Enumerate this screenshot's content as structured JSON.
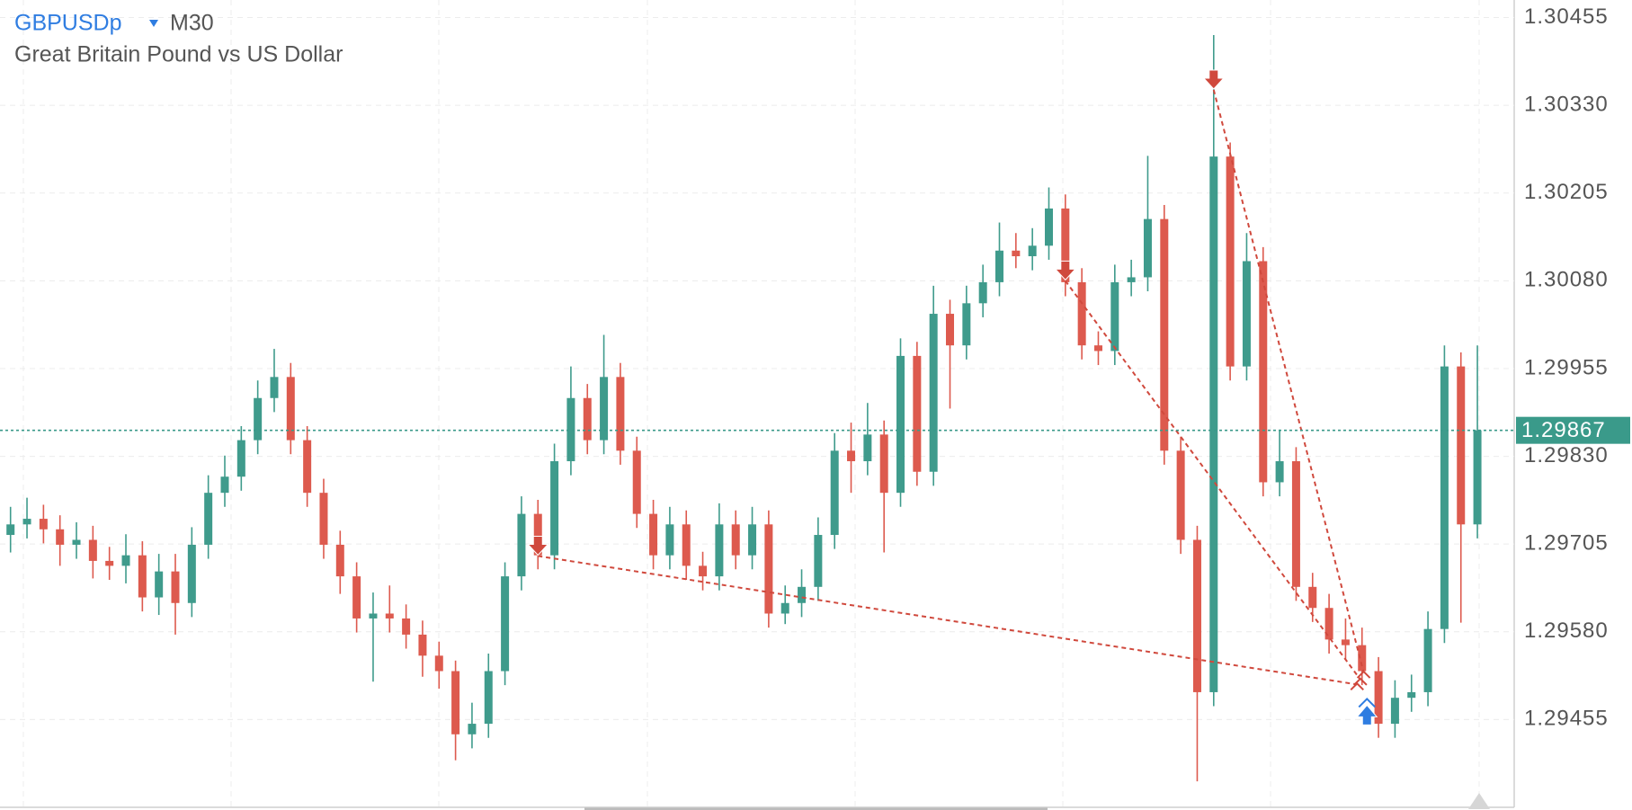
{
  "chart_data": {
    "type": "candlestick",
    "title": "GBPUSDp",
    "timeframe": "M30",
    "subtitle": "Great Britain Pound vs US Dollar",
    "up_color": "#3f9b8c",
    "down_color": "#dd5a4e",
    "grid": true,
    "ylim": [
      1.2933,
      1.3048
    ],
    "yticks": [
      1.30455,
      {
        "value": 1.3033,
        "label": "1.30330"
      },
      1.30205,
      {
        "value": 1.3008,
        "label": "1.30080"
      },
      1.29955,
      {
        "value": 1.2983,
        "label": "1.29830"
      },
      1.29705,
      {
        "value": 1.2958,
        "label": "1.29580"
      },
      1.29455
    ],
    "last_price": 1.29867,
    "last_price_color": "#3a9a8a",
    "open": [
      1.29718,
      1.29733,
      1.29741,
      1.29726,
      1.29704,
      1.29711,
      1.29681,
      1.29674,
      1.29689,
      1.29629,
      1.29666,
      1.29621,
      1.29704,
      1.29778,
      1.29801,
      1.29853,
      1.29913,
      1.29943,
      1.29853,
      1.29778,
      1.29704,
      1.29659,
      1.29599,
      1.29606,
      1.29599,
      1.29576,
      1.29546,
      1.29524,
      1.29434,
      1.29449,
      1.29524,
      1.29659,
      1.29748,
      1.29689,
      1.29823,
      1.29913,
      1.29853,
      1.29943,
      1.29838,
      1.29748,
      1.29689,
      1.29733,
      1.29674,
      1.29659,
      1.29733,
      1.29689,
      1.29733,
      1.29606,
      1.29621,
      1.29644,
      1.29718,
      1.29838,
      1.29823,
      1.29861,
      1.29778,
      1.29973,
      1.29808,
      1.30033,
      1.29988,
      1.30048,
      1.30078,
      1.30123,
      1.30115,
      1.3013,
      1.30183,
      1.30078,
      1.29988,
      1.2998,
      1.30078,
      1.30085,
      1.30168,
      1.29838,
      1.29711,
      1.29494,
      1.30257,
      1.29958,
      1.30108,
      1.29793,
      1.29823,
      1.29644,
      1.29614,
      1.29569,
      1.29561,
      1.29524,
      1.29449,
      1.29486,
      1.29494,
      1.29584,
      1.29958,
      1.29733
    ],
    "high": [
      1.29758,
      1.29771,
      1.29761,
      1.29746,
      1.29736,
      1.29731,
      1.29701,
      1.29719,
      1.29709,
      1.29691,
      1.29691,
      1.29729,
      1.29803,
      1.29831,
      1.29873,
      1.29938,
      1.29983,
      1.29963,
      1.29873,
      1.29798,
      1.29724,
      1.29679,
      1.29636,
      1.29646,
      1.29619,
      1.29596,
      1.29566,
      1.29539,
      1.29479,
      1.29549,
      1.29679,
      1.29773,
      1.29768,
      1.29848,
      1.29958,
      1.29933,
      1.30003,
      1.29963,
      1.29858,
      1.29768,
      1.29758,
      1.29753,
      1.29694,
      1.29763,
      1.29753,
      1.29758,
      1.29753,
      1.29646,
      1.29669,
      1.29743,
      1.29863,
      1.29878,
      1.29906,
      1.29881,
      1.29998,
      1.29993,
      1.30073,
      1.30053,
      1.30073,
      1.30103,
      1.30163,
      1.30148,
      1.30155,
      1.30213,
      1.30203,
      1.30098,
      1.30008,
      1.30103,
      1.3011,
      1.30258,
      1.30188,
      1.29858,
      1.29731,
      1.3043,
      1.30277,
      1.30148,
      1.30128,
      1.29868,
      1.29843,
      1.29664,
      1.29634,
      1.29599,
      1.29586,
      1.29544,
      1.29511,
      1.29519,
      1.29609,
      1.29988,
      1.29978,
      1.29988
    ],
    "low": [
      1.29693,
      1.29713,
      1.29706,
      1.29674,
      1.29684,
      1.29656,
      1.29654,
      1.29649,
      1.29609,
      1.29604,
      1.29576,
      1.29601,
      1.29684,
      1.29758,
      1.29781,
      1.29833,
      1.29893,
      1.29833,
      1.29758,
      1.29684,
      1.29634,
      1.29579,
      1.29509,
      1.29579,
      1.29556,
      1.29516,
      1.29499,
      1.29397,
      1.29414,
      1.29429,
      1.29504,
      1.29639,
      1.29669,
      1.29669,
      1.29803,
      1.29833,
      1.29833,
      1.29818,
      1.29728,
      1.29669,
      1.29669,
      1.29654,
      1.29639,
      1.29639,
      1.29669,
      1.29669,
      1.29586,
      1.29591,
      1.29601,
      1.29624,
      1.29698,
      1.29778,
      1.29803,
      1.29693,
      1.29758,
      1.29788,
      1.29788,
      1.29898,
      1.29968,
      1.30028,
      1.30058,
      1.30098,
      1.30095,
      1.3011,
      1.30058,
      1.29968,
      1.2996,
      1.2996,
      1.30058,
      1.30065,
      1.29818,
      1.29691,
      1.29367,
      1.29474,
      1.29938,
      1.29938,
      1.29773,
      1.29773,
      1.29624,
      1.29594,
      1.29549,
      1.29541,
      1.29504,
      1.29429,
      1.29429,
      1.29466,
      1.29474,
      1.29564,
      1.29593,
      1.29713
    ],
    "close": [
      1.29733,
      1.29741,
      1.29726,
      1.29704,
      1.29711,
      1.29681,
      1.29674,
      1.29689,
      1.29629,
      1.29666,
      1.29621,
      1.29704,
      1.29778,
      1.29801,
      1.29853,
      1.29913,
      1.29943,
      1.29853,
      1.29778,
      1.29704,
      1.29659,
      1.29599,
      1.29606,
      1.29599,
      1.29576,
      1.29546,
      1.29524,
      1.29434,
      1.29449,
      1.29524,
      1.29659,
      1.29748,
      1.29689,
      1.29823,
      1.29913,
      1.29853,
      1.29943,
      1.29838,
      1.29748,
      1.29689,
      1.29733,
      1.29674,
      1.29659,
      1.29733,
      1.29689,
      1.29733,
      1.29606,
      1.29621,
      1.29644,
      1.29718,
      1.29838,
      1.29823,
      1.29861,
      1.29778,
      1.29973,
      1.29808,
      1.30033,
      1.29988,
      1.30048,
      1.30078,
      1.30123,
      1.30115,
      1.3013,
      1.30183,
      1.30078,
      1.29988,
      1.2998,
      1.30078,
      1.30085,
      1.30168,
      1.29838,
      1.29711,
      1.29494,
      1.30257,
      1.29958,
      1.30108,
      1.29793,
      1.29823,
      1.29644,
      1.29614,
      1.29569,
      1.29561,
      1.29524,
      1.29449,
      1.29486,
      1.29494,
      1.29584,
      1.29958,
      1.29733,
      1.29867
    ],
    "trade_color": "#d0493d",
    "buy_color": "#2f7de1",
    "trades": [
      {
        "direction": "sell",
        "open_index": 32,
        "open_price": 1.29688,
        "close_index": 81.7,
        "close_price": 1.29505
      },
      {
        "direction": "sell",
        "open_index": 64,
        "open_price": 1.3008,
        "close_index": 81.9,
        "close_price": 1.29512
      },
      {
        "direction": "sell",
        "open_index": 73,
        "open_price": 1.30352,
        "close_index": 82.1,
        "close_price": 1.29522
      }
    ],
    "buy_markers": [
      {
        "index": 82.3,
        "price": 1.29478
      }
    ]
  }
}
